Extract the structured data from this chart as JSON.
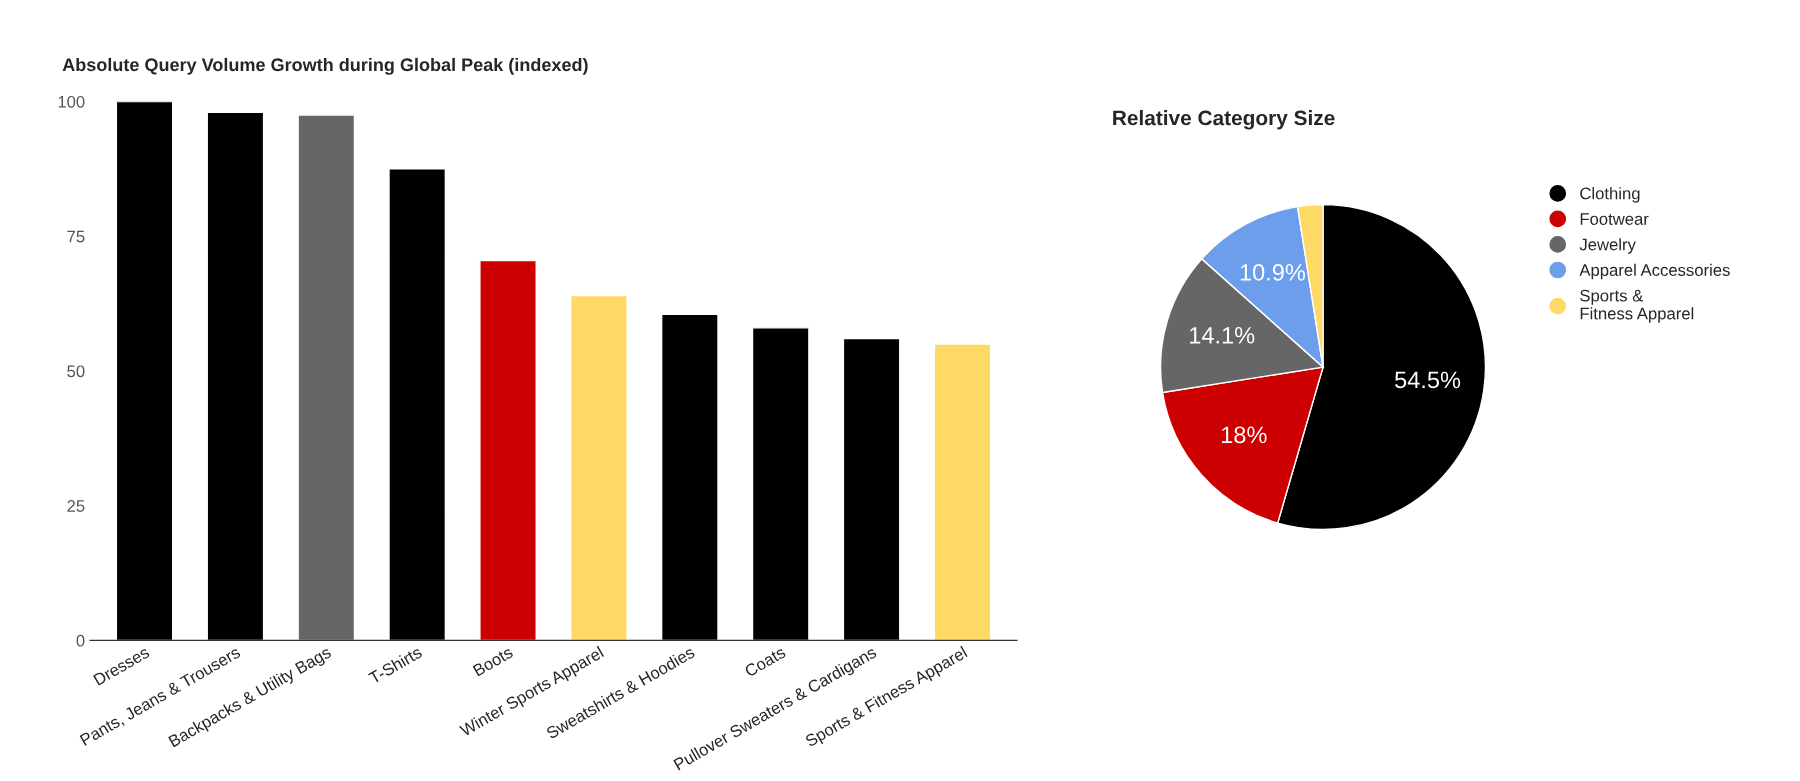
{
  "chart_data": [
    {
      "type": "bar",
      "title": "Absolute Query Volume Growth during Global Peak (indexed)",
      "categories": [
        "Dresses",
        "Pants, Jeans & Trousers",
        "Backpacks & Utility Bags",
        "T-Shirts",
        "Boots",
        "Winter Sports Apparel",
        "Sweatshirts & Hoodies",
        "Coats",
        "Pullover Sweaters & Cardigans",
        "Sports & Fitness Apparel"
      ],
      "values": [
        100,
        98,
        97.5,
        87.5,
        70.5,
        64,
        60.5,
        58,
        56,
        55
      ],
      "colors": [
        "#000000",
        "#000000",
        "#666666",
        "#000000",
        "#cc0000",
        "#ffd966",
        "#000000",
        "#000000",
        "#000000",
        "#ffd966"
      ],
      "ylim": [
        0,
        100
      ],
      "yticks": [
        0,
        25,
        50,
        75,
        100
      ],
      "grid": false
    },
    {
      "type": "pie",
      "title": "Relative Category Size",
      "categories": [
        "Clothing",
        "Footwear",
        "Jewelry",
        "Apparel Accessories",
        "Sports & Fitness Apparel"
      ],
      "values": [
        54.5,
        18,
        14.1,
        10.9,
        2.5
      ],
      "value_labels": [
        "54.5%",
        "18%",
        "14.1%",
        "10.9%",
        null
      ],
      "colors": [
        "#000000",
        "#cc0000",
        "#666666",
        "#6d9eeb",
        "#ffd966"
      ],
      "legend": "right"
    }
  ]
}
